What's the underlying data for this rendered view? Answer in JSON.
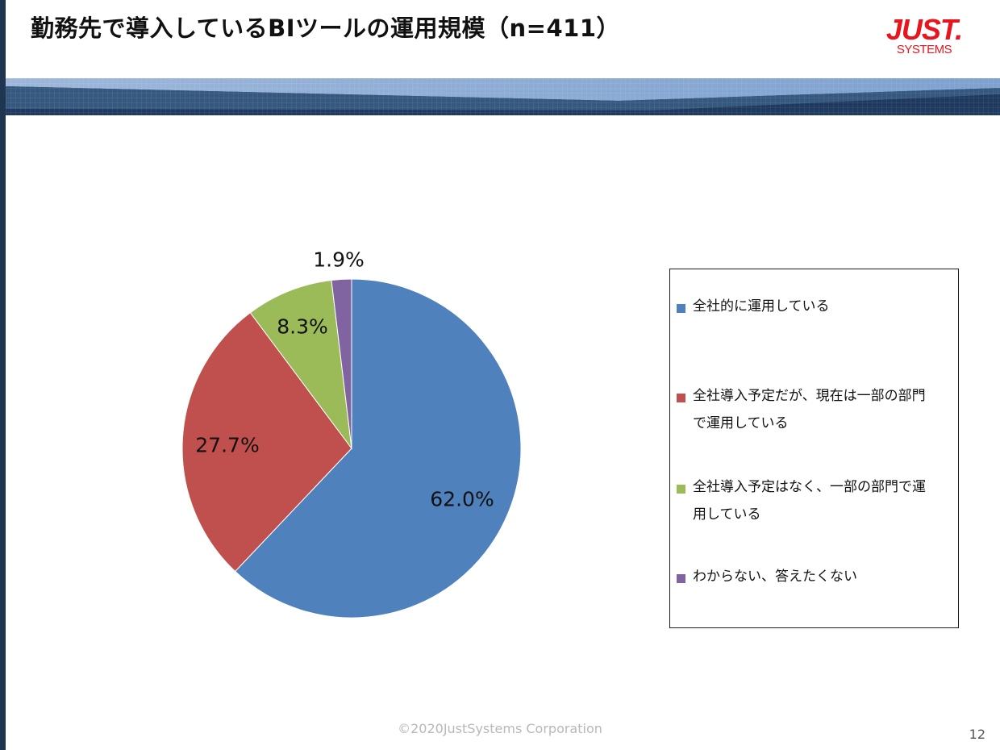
{
  "header": {
    "title": "勤務先で導入しているBIツールの運用規模（n=411）",
    "logo_main": "JUST.",
    "logo_sub": "SYSTEMS"
  },
  "chart_data": {
    "type": "pie",
    "title": "勤務先で導入しているBIツールの運用規模（n=411）",
    "slices": [
      {
        "label": "全社的に運用している",
        "value": 62.0,
        "display": "62.0%",
        "color": "#4f81bd"
      },
      {
        "label": "全社導入予定だが、現在は一部の部門で運用している",
        "value": 27.7,
        "display": "27.7%",
        "color": "#c0504d"
      },
      {
        "label": "全社導入予定はなく、一部の部門で運用している",
        "value": 8.3,
        "display": "8.3%",
        "color": "#9bbb59"
      },
      {
        "label": "わからない、答えたくない",
        "value": 1.9,
        "display": "1.9%",
        "color": "#8064a2"
      }
    ],
    "start_angle": "12 o'clock",
    "direction": "clockwise",
    "legend_position": "right"
  },
  "legend": {
    "items": [
      {
        "lines": [
          "全社的に運用している"
        ],
        "color": "#4f81bd"
      },
      {
        "lines": [
          "全社導入予定だが、現在は一部の部門",
          "で運用している"
        ],
        "color": "#c0504d"
      },
      {
        "lines": [
          "全社導入予定はなく、一部の部門で運",
          "用している"
        ],
        "color": "#9bbb59"
      },
      {
        "lines": [
          "わからない、答えたくない"
        ],
        "color": "#8064a2"
      }
    ]
  },
  "footer": {
    "copyright": "©2020JustSystems Corporation",
    "page_number": "12"
  }
}
